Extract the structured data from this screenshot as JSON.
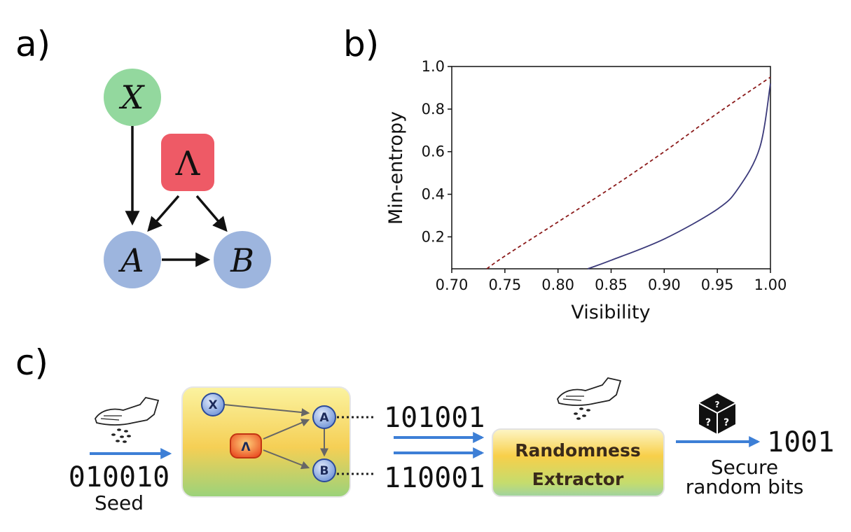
{
  "panels": {
    "a": {
      "label": "a)",
      "nodes": {
        "x": "X",
        "lambda": "Λ",
        "a": "A",
        "b": "B"
      }
    },
    "b": {
      "label": "b)"
    },
    "c": {
      "label": "c)",
      "seed_bits": "010010",
      "seed_label": "Seed",
      "mini_nodes": {
        "x": "X",
        "lambda": "Λ",
        "a": "A",
        "b": "B"
      },
      "output_a": "101001",
      "output_b": "110001",
      "extractor_line1": "Randomness",
      "extractor_line2": "Extractor",
      "result_bits": "1001",
      "result_line1": "Secure",
      "result_line2": "random bits"
    }
  },
  "colors": {
    "node_green": "#93d89e",
    "node_red": "#ee5a66",
    "node_blue": "#9db5de",
    "curve_dashed": "#8b1a1a",
    "curve_solid": "#3b3a7a",
    "flow_arrow": "#3d7fd6"
  },
  "icons": [
    "hand-sprinkle-icon",
    "dice-icon"
  ],
  "chart_data": {
    "type": "line",
    "title": "",
    "xlabel": "Visibility",
    "ylabel": "Min-entropy",
    "xlim": [
      0.7,
      1.0
    ],
    "ylim": [
      0.05,
      1.0
    ],
    "xticks": [
      "0.70",
      "0.75",
      "0.80",
      "0.85",
      "0.90",
      "0.95",
      "1.00"
    ],
    "yticks": [
      "0.2",
      "0.4",
      "0.6",
      "0.8",
      "1.0"
    ],
    "grid": false,
    "legend": "none",
    "series": [
      {
        "style": "dashed",
        "color": "#8b1a1a",
        "x": [
          0.733,
          0.75,
          0.8,
          0.85,
          0.9,
          0.95,
          1.0
        ],
        "y": [
          0.05,
          0.11,
          0.27,
          0.43,
          0.6,
          0.78,
          0.95
        ]
      },
      {
        "style": "solid",
        "color": "#3b3a7a",
        "x": [
          0.828,
          0.85,
          0.9,
          0.95,
          0.97,
          0.99,
          1.0
        ],
        "y": [
          0.05,
          0.09,
          0.19,
          0.33,
          0.43,
          0.62,
          0.92
        ]
      }
    ]
  }
}
